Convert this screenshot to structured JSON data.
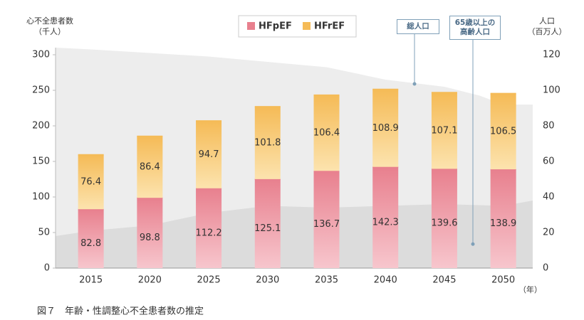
{
  "chart_data": {
    "type": "bar",
    "stacked": true,
    "caption": "図７　年齢・性調整心不全患者数の推定",
    "y_label_lines": [
      "心不全患者数",
      "（千人）"
    ],
    "y2_label_lines": [
      "人口",
      "（百万人）"
    ],
    "x_unit": "（年）",
    "x": [
      2015,
      2020,
      2025,
      2030,
      2035,
      2040,
      2045,
      2050
    ],
    "xlim": [
      2012,
      2052.5
    ],
    "series": [
      {
        "name": "HFpEF",
        "color": "#e8808e",
        "values": [
          82.8,
          98.8,
          112.2,
          125.1,
          136.7,
          142.3,
          139.6,
          138.9
        ]
      },
      {
        "name": "HFrEF",
        "color": "#f5bb57",
        "values": [
          76.4,
          86.4,
          94.7,
          101.8,
          106.4,
          108.9,
          107.1,
          106.5
        ]
      }
    ],
    "ylim": [
      0,
      300
    ],
    "yticks": [
      0,
      50,
      100,
      150,
      200,
      250,
      300
    ],
    "y2lim": [
      0,
      120
    ],
    "y2ticks": [
      0,
      20,
      40,
      60,
      80,
      100,
      120
    ],
    "area_series": [
      {
        "name": "総人口",
        "type": "area",
        "axis": "y2",
        "color": "#ededed",
        "x": [
          2012,
          2015,
          2020,
          2025,
          2030,
          2035,
          2040,
          2045,
          2048,
          2050,
          2052.5
        ],
        "values": [
          124,
          123,
          121,
          119,
          116,
          113,
          106,
          102,
          97,
          92,
          92
        ]
      },
      {
        "name": "65歳以上の高齢人口",
        "type": "area",
        "axis": "y2",
        "color": "#dcdcdc",
        "x": [
          2012,
          2015,
          2020,
          2025,
          2030,
          2035,
          2040,
          2045,
          2050,
          2052.5
        ],
        "values": [
          18,
          21,
          24,
          31,
          35,
          34,
          35,
          36,
          35,
          38
        ]
      }
    ]
  }
}
